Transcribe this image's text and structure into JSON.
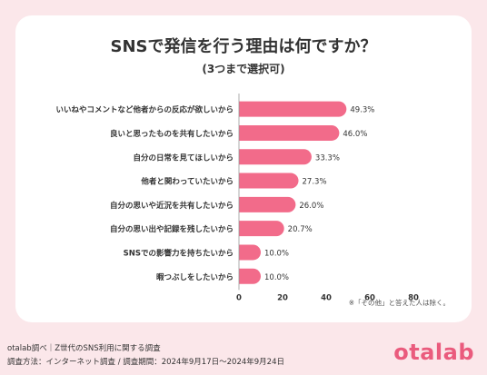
{
  "chart_data": {
    "type": "bar",
    "orientation": "horizontal",
    "title": "SNSで発信を行う理由は何ですか？",
    "subtitle": "(3つまで選択可)",
    "categories": [
      "いいねやコメントなど他者からの反応が欲しいから",
      "良いと思ったものを共有したいから",
      "自分の日常を見てほしいから",
      "他者と関わっていたいから",
      "自分の思いや近況を共有したいから",
      "自分の思い出や記録を残したいから",
      "SNSでの影響力を持ちたいから",
      "暇つぶしをしたいから"
    ],
    "values": [
      49.3,
      46.0,
      33.3,
      27.3,
      26.0,
      20.7,
      10.0,
      10.0
    ],
    "value_labels": [
      "49.3%",
      "46.0%",
      "33.3%",
      "27.3%",
      "26.0%",
      "20.7%",
      "10.0%",
      "10.0%"
    ],
    "xlim": [
      0,
      80
    ],
    "xticks": [
      0,
      20,
      40,
      60,
      80
    ],
    "grid": false,
    "bar_color": "#f26b8a"
  },
  "note": "※「その他」と答えた人は除く。",
  "footer": {
    "line1": "otalab調べ｜Z世代のSNS利用に関する調査",
    "line2": "調査方法：インターネット調査 / 調査期間：2024年9月17日〜2024年9月24日"
  },
  "logo_text": "otalab",
  "colors": {
    "background": "#fbe7ea",
    "bar": "#f26b8a",
    "logo": "#ea5b7d"
  }
}
